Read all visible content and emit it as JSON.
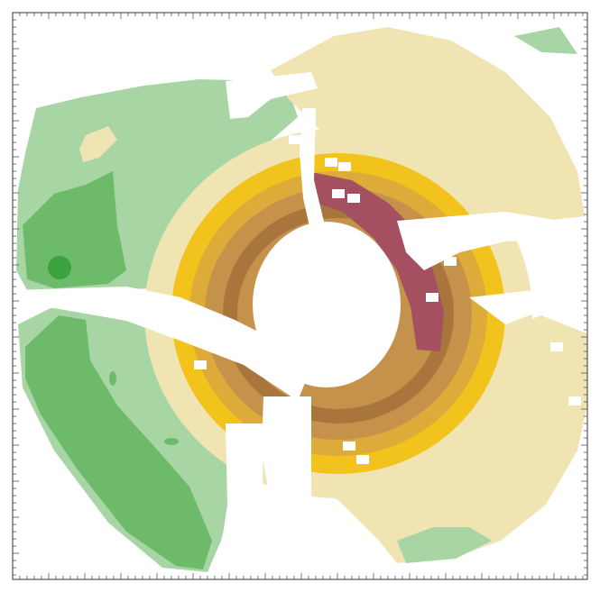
{
  "chart_data": {
    "type": "heatmap",
    "title": "",
    "xlabel": "",
    "ylabel": "",
    "grid": false,
    "legend": "none",
    "colors": {
      "pale_green": "#a8d5a4",
      "mid_green": "#6dbb6a",
      "dark_green": "#3aa33d",
      "cream": "#f1e4b3",
      "yellow": "#f2c31c",
      "gold": "#dcab3a",
      "light_brown": "#c4924a",
      "brown": "#a8763c",
      "maroon": "#a45060",
      "frame": "#555555",
      "background": "#ffffff"
    },
    "levels": [
      {
        "name": "pale_green",
        "color": "#a8d5a4"
      },
      {
        "name": "mid_green",
        "color": "#6dbb6a"
      },
      {
        "name": "dark_green",
        "color": "#3aa33d"
      },
      {
        "name": "cream",
        "color": "#f1e4b3"
      },
      {
        "name": "yellow",
        "color": "#f2c31c"
      },
      {
        "name": "gold",
        "color": "#dcab3a"
      },
      {
        "name": "light_brown",
        "color": "#c4924a"
      },
      {
        "name": "brown",
        "color": "#a8763c"
      },
      {
        "name": "maroon",
        "color": "#a45060"
      }
    ]
  }
}
